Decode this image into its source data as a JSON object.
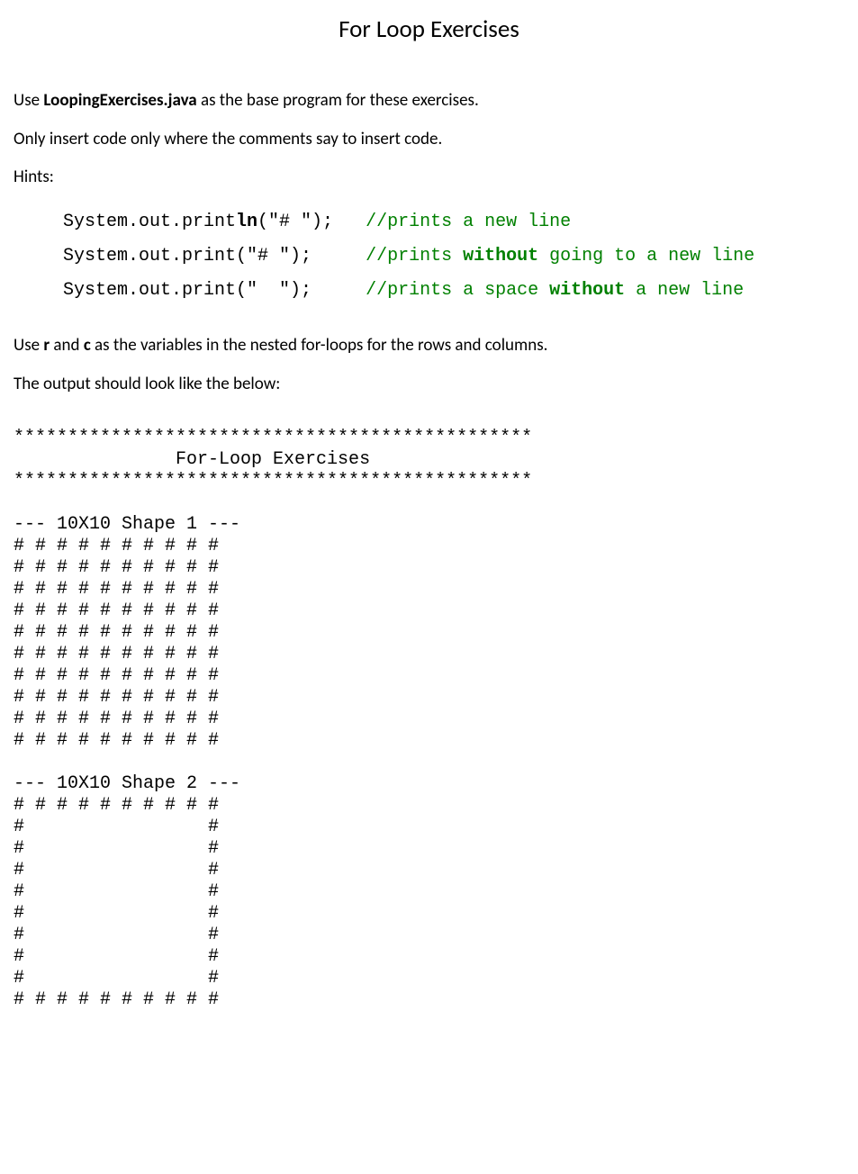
{
  "title": "For Loop Exercises",
  "p1_pre": "Use ",
  "p1_bold": "LoopingExercises.java",
  "p1_post": " as the base program for these exercises.",
  "p2": "Only insert code only where the comments say to insert code.",
  "p3": "Hints:",
  "code": {
    "line1_a": "System.out.print",
    "line1_b": "ln",
    "line1_c": "(\"# \");   ",
    "line1_d": "//prints a new line",
    "line2_a": "System.out.print(\"# \");     ",
    "line2_b_pre": "//prints ",
    "line2_b_bold": "without",
    "line2_b_post": " going to a new line",
    "line3_a": "System.out.print(\"  \");     ",
    "line3_b_pre": "//prints a space ",
    "line3_b_bold": "without",
    "line3_b_post": " a new line"
  },
  "p4_pre": "Use ",
  "p4_b1": "r",
  "p4_mid": " and ",
  "p4_b2": "c",
  "p4_post": " as the variables in the nested for-loops for the rows and columns.",
  "p5": "The output should look like the below:",
  "output": "************************************************\n               For-Loop Exercises\n************************************************\n\n--- 10X10 Shape 1 ---\n# # # # # # # # # #\n# # # # # # # # # #\n# # # # # # # # # #\n# # # # # # # # # #\n# # # # # # # # # #\n# # # # # # # # # #\n# # # # # # # # # #\n# # # # # # # # # #\n# # # # # # # # # #\n# # # # # # # # # #\n\n--- 10X10 Shape 2 ---\n# # # # # # # # # #\n#                 #\n#                 #\n#                 #\n#                 #\n#                 #\n#                 #\n#                 #\n#                 #\n# # # # # # # # # #"
}
